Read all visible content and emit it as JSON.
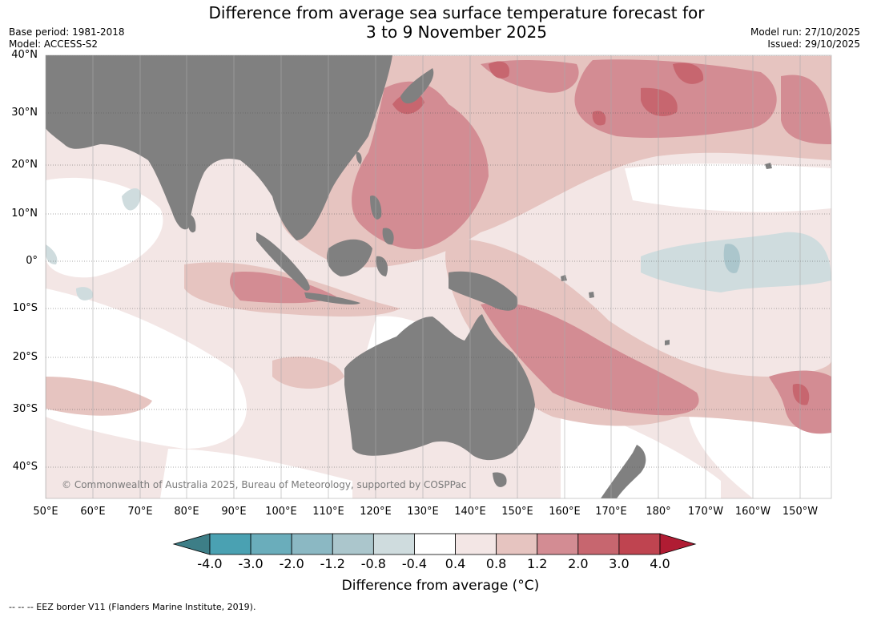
{
  "title": {
    "line1": "Difference from average sea surface temperature forecast for",
    "line2": "3 to 9 November 2025"
  },
  "meta_left": {
    "base_period": "Base period: 1981-2018",
    "model": "Model: ACCESS-S2"
  },
  "meta_right": {
    "model_run": "Model run: 27/10/2025",
    "issued": "Issued: 29/10/2025"
  },
  "lat_labels": [
    "40°N",
    "30°N",
    "20°N",
    "10°N",
    "0°",
    "10°S",
    "20°S",
    "30°S",
    "40°S"
  ],
  "lon_labels": [
    "50°E",
    "60°E",
    "70°E",
    "80°E",
    "90°E",
    "100°E",
    "110°E",
    "120°E",
    "130°E",
    "140°E",
    "150°E",
    "160°E",
    "170°E",
    "180°",
    "170°W",
    "160°W",
    "150°W"
  ],
  "copyright": "© Commonwealth of Australia 2025, Bureau of Meteorology, supported by COSPPac",
  "colorbar": {
    "ticks": [
      "-4.0",
      "-3.0",
      "-2.0",
      "-1.2",
      "-0.8",
      "-0.4",
      "0.4",
      "0.8",
      "1.2",
      "2.0",
      "3.0",
      "4.0"
    ],
    "colors": [
      "#3d7e87",
      "#4aa1b2",
      "#6aadbb",
      "#8bb8c3",
      "#abc6cc",
      "#cfdcde",
      "#ffffff",
      "#f3e6e5",
      "#e6c4c0",
      "#d38c93",
      "#c7666f",
      "#bf4450",
      "#b01c33"
    ],
    "label": "Difference from average (°C)"
  },
  "footnote": "--  --  -- EEZ border V11 (Flanders Marine Institute, 2019).",
  "colors": {
    "land": "#808080",
    "grid": "#555555"
  }
}
